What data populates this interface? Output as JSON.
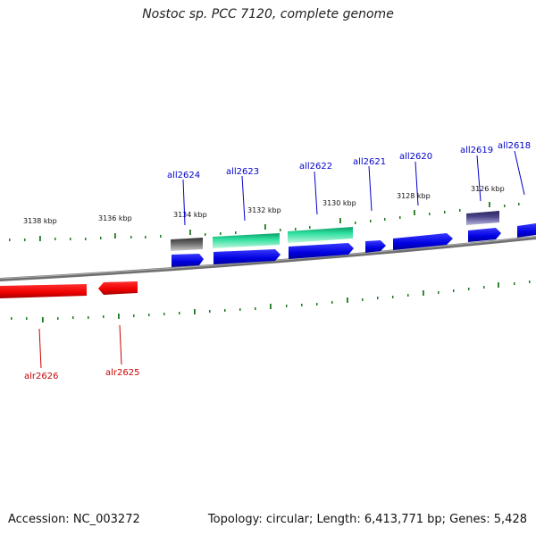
{
  "title": "Nostoc sp. PCC 7120, complete genome",
  "footer": {
    "accession": "Accession: NC_003272",
    "stats": "Topology: circular; Length: 6,413,771 bp; Genes: 5,428"
  },
  "colors": {
    "forward_strand": "#0000ee",
    "reverse_strand": "#ee0000",
    "highlight_green": "#1ec88a",
    "dark_gene": "#555555",
    "purple_gene": "#4a4488",
    "tick": "#1f7a1f",
    "backbone": "#777777"
  },
  "tick_labels": [
    "3138 kbp",
    "3136 kbp",
    "3134 kbp",
    "3132 kbp",
    "3130 kbp",
    "3128 kbp",
    "3126 kbp"
  ],
  "genes_top": [
    {
      "id": "all2624",
      "color": "#0000cc"
    },
    {
      "id": "all2623",
      "color": "#0000cc"
    },
    {
      "id": "all2622",
      "color": "#0000cc"
    },
    {
      "id": "all2621",
      "color": "#0000cc"
    },
    {
      "id": "all2620",
      "color": "#0000cc"
    },
    {
      "id": "all2619",
      "color": "#0000cc"
    },
    {
      "id": "all2618",
      "color": "#0000cc"
    }
  ],
  "genes_bottom": [
    {
      "id": "alr2626",
      "color": "#cc0000"
    },
    {
      "id": "alr2625",
      "color": "#cc0000"
    }
  ]
}
